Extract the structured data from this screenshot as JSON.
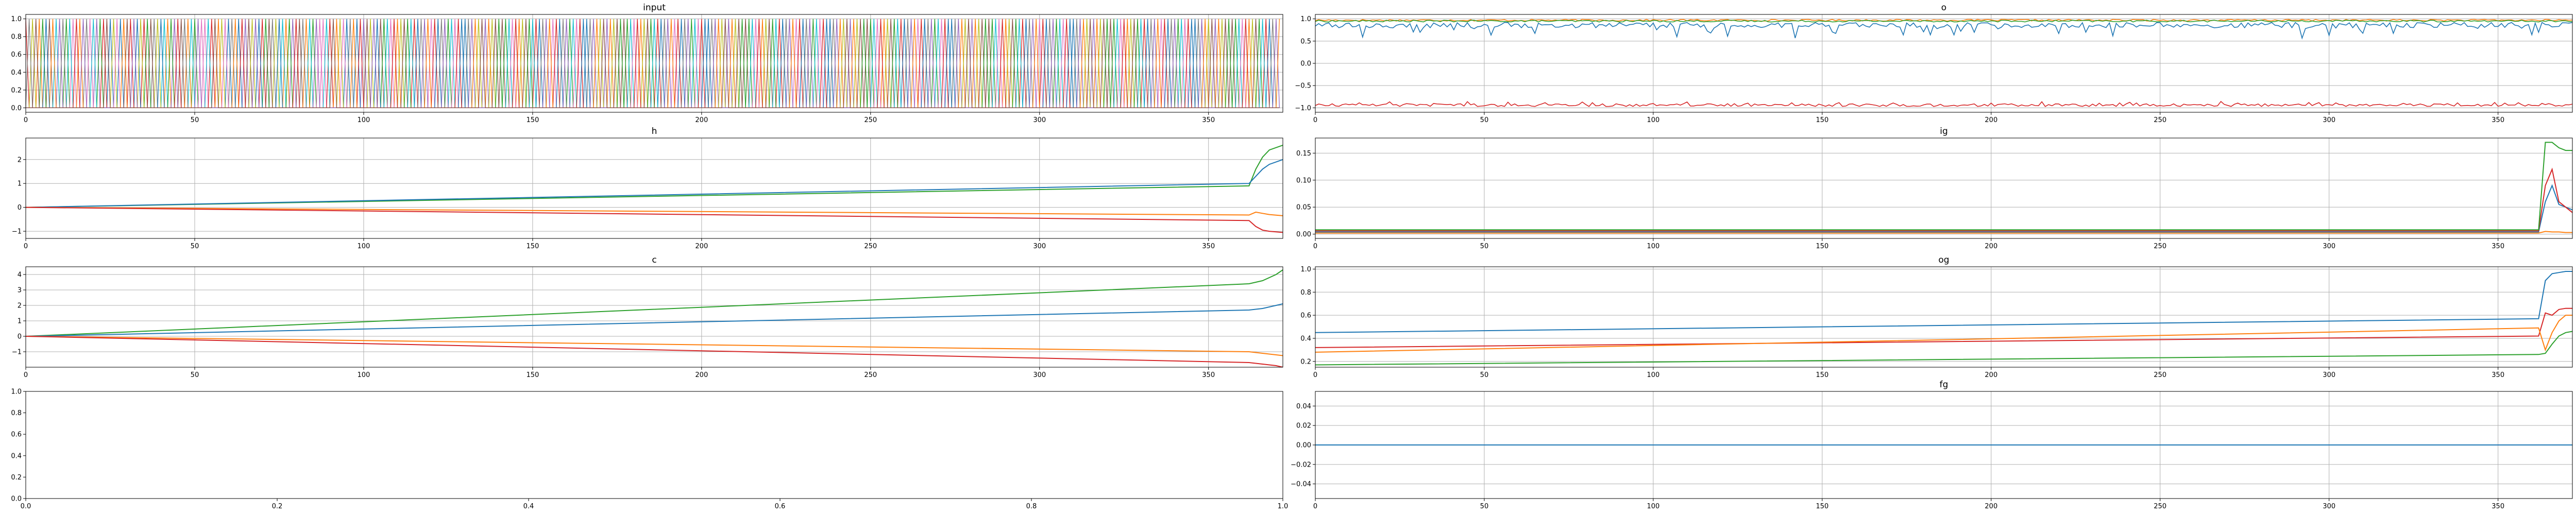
{
  "figure": {
    "background": "#ffffff"
  },
  "chart_data": [
    {
      "id": "input",
      "type": "line",
      "title": "input",
      "grid": true,
      "xlim": [
        0,
        372
      ],
      "ylim": [
        -0.05,
        1.05
      ],
      "xticks": [
        0,
        50,
        100,
        150,
        200,
        250,
        300,
        350
      ],
      "yticks": [
        0.0,
        0.2,
        0.4,
        0.6,
        0.8,
        1.0
      ],
      "ytick_labels": [
        "0.0",
        "0.2",
        "0.4",
        "0.6",
        "0.8",
        "1.0"
      ],
      "length": 372,
      "one_hot_indices": [
        3,
        17,
        8,
        25,
        1,
        12,
        30,
        5,
        21,
        9,
        14,
        27,
        2,
        19,
        6,
        33,
        11,
        24,
        7,
        16,
        29,
        4,
        22,
        13,
        35,
        10,
        18,
        26,
        0,
        31,
        15,
        23,
        34,
        20,
        28,
        3,
        12,
        25,
        7,
        18,
        30,
        9,
        1,
        22,
        14,
        33,
        5,
        27,
        11,
        19,
        2,
        24,
        16,
        6,
        29,
        13,
        35,
        21,
        8,
        26,
        0,
        17,
        31,
        10,
        23,
        4,
        15,
        28,
        34,
        20,
        3,
        12,
        25,
        7,
        18,
        30,
        9,
        1,
        22,
        14,
        33,
        5,
        27,
        11,
        19,
        2,
        24,
        16,
        6,
        29,
        13,
        35,
        21,
        8,
        26,
        0,
        17,
        31,
        10,
        23,
        4,
        15,
        28,
        34,
        20,
        5,
        12,
        19,
        26,
        33,
        1,
        8,
        15,
        22,
        29,
        3,
        10,
        17,
        24,
        31,
        6,
        13,
        20,
        27,
        34,
        2,
        9,
        16,
        23,
        30,
        0,
        7,
        14,
        21,
        28,
        35,
        4,
        11,
        18,
        25,
        32,
        5,
        12,
        19,
        26,
        33,
        1,
        8,
        15,
        22,
        29,
        3,
        10,
        17,
        24,
        31,
        6,
        13,
        20,
        27,
        34,
        2,
        9,
        16,
        23,
        30,
        0,
        7,
        14,
        21,
        28,
        35,
        4,
        11,
        18,
        25,
        32,
        5,
        12,
        19,
        26,
        33,
        1,
        8,
        15,
        22,
        29,
        3,
        10,
        17,
        24,
        31,
        6,
        13,
        20,
        27,
        34,
        2,
        9,
        16,
        23,
        30,
        0,
        7,
        14,
        21,
        28,
        35,
        4,
        11,
        18,
        25,
        32,
        5,
        12,
        19,
        26,
        33,
        1,
        8,
        15,
        22,
        29,
        3,
        10,
        17,
        24,
        31,
        6,
        13,
        20,
        27,
        34,
        2,
        9,
        16,
        23,
        30,
        0,
        7,
        14,
        21,
        28,
        35,
        4,
        11,
        18,
        25,
        32,
        5,
        12,
        19,
        26,
        33,
        1,
        8,
        15,
        22,
        29,
        3,
        10,
        17,
        24,
        31,
        6,
        13,
        20,
        27,
        34,
        2,
        9,
        16,
        23,
        30,
        0,
        7,
        14,
        21,
        28,
        35,
        4,
        11,
        18,
        25,
        32,
        5,
        12,
        19,
        26,
        33,
        1,
        8,
        15,
        22,
        29,
        3,
        10,
        17,
        24,
        31,
        6,
        13,
        20,
        27,
        34,
        2,
        9,
        16,
        23,
        30,
        0,
        7,
        14,
        21,
        28,
        35,
        4,
        11,
        18,
        25,
        32,
        5,
        12,
        19,
        26,
        33,
        1,
        8,
        15,
        22,
        29,
        3,
        10,
        17,
        24,
        31,
        6,
        13,
        20,
        27,
        34,
        2,
        9,
        16,
        23,
        30,
        0,
        7,
        14,
        21,
        28,
        35,
        4,
        11,
        18,
        25,
        32,
        5,
        12,
        19,
        26,
        33,
        1,
        8,
        15,
        22,
        29,
        3,
        10,
        17,
        24,
        31,
        6,
        13,
        20
      ]
    },
    {
      "id": "o",
      "type": "line",
      "title": "o",
      "grid": true,
      "xlim": [
        0,
        372
      ],
      "ylim": [
        -1.1,
        1.1
      ],
      "xticks": [
        0,
        50,
        100,
        150,
        200,
        250,
        300,
        350
      ],
      "yticks": [
        -1.0,
        -0.5,
        0.0,
        0.5,
        1.0
      ],
      "ytick_labels": [
        "−1.0",
        "−0.5",
        "0.0",
        "0.5",
        "1.0"
      ],
      "series": [
        {
          "color": "#ff7f0e",
          "base": 0.97,
          "noise": 0.02
        },
        {
          "color": "#2ca02c",
          "base": 0.95,
          "noise": 0.02
        },
        {
          "color": "#1f77b4",
          "base": 0.86,
          "noise": 0.06
        },
        {
          "color": "#d62728",
          "base": -0.94,
          "noise": 0.03
        }
      ]
    },
    {
      "id": "h",
      "type": "line",
      "title": "h",
      "grid": true,
      "xlim": [
        0,
        372
      ],
      "ylim": [
        -1.3,
        2.9
      ],
      "xticks": [
        0,
        50,
        100,
        150,
        200,
        250,
        300,
        350
      ],
      "yticks": [
        -1,
        0,
        1,
        2
      ],
      "ytick_labels": [
        "−1",
        "0",
        "1",
        "2"
      ],
      "series": [
        {
          "color": "#2ca02c",
          "x": [
            0,
            362,
            364,
            366,
            368,
            372
          ],
          "y": [
            0,
            0.9,
            1.6,
            2.1,
            2.4,
            2.6
          ]
        },
        {
          "color": "#1f77b4",
          "x": [
            0,
            362,
            364,
            366,
            368,
            372
          ],
          "y": [
            0,
            1.0,
            1.3,
            1.6,
            1.8,
            2.0
          ]
        },
        {
          "color": "#ff7f0e",
          "x": [
            0,
            362,
            364,
            366,
            368,
            372
          ],
          "y": [
            0,
            -0.32,
            -0.2,
            -0.25,
            -0.3,
            -0.35
          ]
        },
        {
          "color": "#d62728",
          "x": [
            0,
            362,
            364,
            366,
            368,
            372
          ],
          "y": [
            0,
            -0.55,
            -0.8,
            -0.95,
            -1.0,
            -1.05
          ]
        }
      ]
    },
    {
      "id": "ig",
      "type": "line",
      "title": "ig",
      "grid": true,
      "xlim": [
        0,
        372
      ],
      "ylim": [
        -0.008,
        0.178
      ],
      "xticks": [
        0,
        50,
        100,
        150,
        200,
        250,
        300,
        350
      ],
      "yticks": [
        0.0,
        0.05,
        0.1,
        0.15
      ],
      "ytick_labels": [
        "0.00",
        "0.05",
        "0.10",
        "0.15"
      ],
      "series": [
        {
          "color": "#1f77b4",
          "x": [
            0,
            362,
            364,
            366,
            368,
            370,
            372
          ],
          "y": [
            0.004,
            0.004,
            0.06,
            0.09,
            0.055,
            0.05,
            0.045
          ]
        },
        {
          "color": "#ff7f0e",
          "x": [
            0,
            362,
            364,
            366,
            368,
            370,
            372
          ],
          "y": [
            0.002,
            0.002,
            0.005,
            0.004,
            0.004,
            0.003,
            0.003
          ]
        },
        {
          "color": "#d62728",
          "x": [
            0,
            362,
            364,
            366,
            368,
            370,
            372
          ],
          "y": [
            0.006,
            0.006,
            0.09,
            0.12,
            0.06,
            0.05,
            0.04
          ]
        },
        {
          "color": "#2ca02c",
          "x": [
            0,
            362,
            364,
            366,
            368,
            370,
            372
          ],
          "y": [
            0.008,
            0.008,
            0.17,
            0.17,
            0.16,
            0.155,
            0.155
          ]
        }
      ]
    },
    {
      "id": "c",
      "type": "line",
      "title": "c",
      "grid": true,
      "xlim": [
        0,
        372
      ],
      "ylim": [
        -2.0,
        4.5
      ],
      "xticks": [
        0,
        50,
        100,
        150,
        200,
        250,
        300,
        350
      ],
      "yticks": [
        -1,
        0,
        1,
        2,
        3,
        4
      ],
      "ytick_labels": [
        "−1",
        "0",
        "1",
        "2",
        "3",
        "4"
      ],
      "series": [
        {
          "color": "#2ca02c",
          "x": [
            0,
            362,
            366,
            370,
            372
          ],
          "y": [
            0,
            3.4,
            3.6,
            4.0,
            4.3
          ]
        },
        {
          "color": "#1f77b4",
          "x": [
            0,
            362,
            366,
            370,
            372
          ],
          "y": [
            0,
            1.7,
            1.8,
            2.0,
            2.1
          ]
        },
        {
          "color": "#ff7f0e",
          "x": [
            0,
            362,
            366,
            370,
            372
          ],
          "y": [
            0,
            -1.0,
            -1.1,
            -1.2,
            -1.25
          ]
        },
        {
          "color": "#d62728",
          "x": [
            0,
            362,
            366,
            370,
            372
          ],
          "y": [
            0,
            -1.7,
            -1.8,
            -1.9,
            -2.0
          ]
        }
      ]
    },
    {
      "id": "og",
      "type": "line",
      "title": "og",
      "grid": true,
      "xlim": [
        0,
        372
      ],
      "ylim": [
        0.15,
        1.02
      ],
      "xticks": [
        0,
        50,
        100,
        150,
        200,
        250,
        300,
        350
      ],
      "yticks": [
        0.2,
        0.4,
        0.6,
        0.8,
        1.0
      ],
      "ytick_labels": [
        "0.2",
        "0.4",
        "0.6",
        "0.8",
        "1.0"
      ],
      "series": [
        {
          "color": "#1f77b4",
          "x": [
            0,
            362,
            364,
            366,
            368,
            370,
            372
          ],
          "y": [
            0.45,
            0.57,
            0.9,
            0.96,
            0.97,
            0.98,
            0.98
          ]
        },
        {
          "color": "#d62728",
          "x": [
            0,
            362,
            364,
            366,
            368,
            370,
            372
          ],
          "y": [
            0.32,
            0.42,
            0.62,
            0.6,
            0.65,
            0.66,
            0.66
          ]
        },
        {
          "color": "#ff7f0e",
          "x": [
            0,
            362,
            364,
            366,
            368,
            370,
            372
          ],
          "y": [
            0.28,
            0.49,
            0.3,
            0.45,
            0.55,
            0.6,
            0.6
          ]
        },
        {
          "color": "#2ca02c",
          "x": [
            0,
            362,
            364,
            366,
            368,
            370,
            372
          ],
          "y": [
            0.17,
            0.26,
            0.27,
            0.35,
            0.42,
            0.45,
            0.46
          ]
        }
      ]
    },
    {
      "id": "empty",
      "type": "line",
      "title": "",
      "grid": false,
      "xlim": [
        0,
        1
      ],
      "ylim": [
        0,
        1
      ],
      "xticks": [
        0,
        0.2,
        0.4,
        0.6,
        0.8,
        1.0
      ],
      "xtick_labels": [
        "0.0",
        "0.2",
        "0.4",
        "0.6",
        "0.8",
        "1.0"
      ],
      "yticks": [
        0,
        0.2,
        0.4,
        0.6,
        0.8,
        1.0
      ],
      "ytick_labels": [
        "0.0",
        "0.2",
        "0.4",
        "0.6",
        "0.8",
        "1.0"
      ],
      "series": []
    },
    {
      "id": "fg",
      "type": "line",
      "title": "fg",
      "grid": true,
      "xlim": [
        0,
        372
      ],
      "ylim": [
        -0.055,
        0.055
      ],
      "xticks": [
        0,
        50,
        100,
        150,
        200,
        250,
        300,
        350
      ],
      "yticks": [
        -0.04,
        -0.02,
        0.0,
        0.02,
        0.04
      ],
      "ytick_labels": [
        "−0.04",
        "−0.02",
        "0.00",
        "0.02",
        "0.04"
      ],
      "series": [
        {
          "color": "#1f77b4",
          "x": [
            0,
            372
          ],
          "y": [
            0,
            0
          ]
        }
      ]
    }
  ],
  "palette": [
    "#1f77b4",
    "#ff7f0e",
    "#2ca02c",
    "#d62728",
    "#9467bd",
    "#8c564b",
    "#e377c2",
    "#7f7f7f",
    "#bcbd22",
    "#17becf"
  ]
}
